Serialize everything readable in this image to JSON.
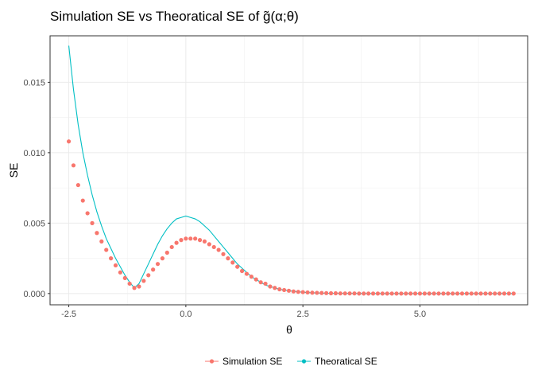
{
  "chart_data": {
    "type": "scatter",
    "title": "Simulation SE vs Theoratical SE of g̃(α;θ)",
    "xlabel": "θ",
    "ylabel": "SE",
    "xlim": [
      -2.9,
      7.3
    ],
    "ylim": [
      -0.0008,
      0.0183
    ],
    "x_ticks": [
      -2.5,
      0,
      2.5,
      5
    ],
    "x_tick_labels": [
      "-2.5",
      "0.0",
      "2.5",
      "5.0"
    ],
    "y_ticks": [
      0,
      0.005,
      0.01,
      0.015
    ],
    "y_tick_labels": [
      "0.000",
      "0.005",
      "0.010",
      "0.015"
    ],
    "grid": true,
    "legend_position": "bottom",
    "series": [
      {
        "name": "Simulation SE",
        "type": "points",
        "color": "#F8766D",
        "x": [
          -2.5,
          -2.4,
          -2.3,
          -2.2,
          -2.1,
          -2.0,
          -1.9,
          -1.8,
          -1.7,
          -1.6,
          -1.5,
          -1.4,
          -1.3,
          -1.2,
          -1.1,
          -1.0,
          -0.9,
          -0.8,
          -0.7,
          -0.6,
          -0.5,
          -0.4,
          -0.3,
          -0.2,
          -0.1,
          0.0,
          0.1,
          0.2,
          0.3,
          0.4,
          0.5,
          0.6,
          0.7,
          0.8,
          0.9,
          1.0,
          1.1,
          1.2,
          1.3,
          1.4,
          1.5,
          1.6,
          1.7,
          1.8,
          1.9,
          2.0,
          2.1,
          2.2,
          2.3,
          2.4,
          2.5,
          2.6,
          2.7,
          2.8,
          2.9,
          3.0,
          3.1,
          3.2,
          3.3,
          3.4,
          3.5,
          3.6,
          3.7,
          3.8,
          3.9,
          4.0,
          4.1,
          4.2,
          4.3,
          4.4,
          4.5,
          4.6,
          4.7,
          4.8,
          4.9,
          5.0,
          5.1,
          5.2,
          5.3,
          5.4,
          5.5,
          5.6,
          5.7,
          5.8,
          5.9,
          6.0,
          6.1,
          6.2,
          6.3,
          6.4,
          6.5,
          6.6,
          6.7,
          6.8,
          6.9,
          7.0
        ],
        "y": [
          0.0108,
          0.0091,
          0.0077,
          0.0066,
          0.0057,
          0.005,
          0.0043,
          0.0037,
          0.0031,
          0.0025,
          0.002,
          0.0015,
          0.0011,
          0.0007,
          0.0004,
          0.0005,
          0.0009,
          0.0013,
          0.0017,
          0.0021,
          0.0025,
          0.0029,
          0.0033,
          0.0036,
          0.0038,
          0.0039,
          0.0039,
          0.0039,
          0.0038,
          0.0037,
          0.0035,
          0.0033,
          0.0031,
          0.0028,
          0.0025,
          0.0022,
          0.0019,
          0.0016,
          0.0014,
          0.0012,
          0.001,
          0.0008,
          0.0007,
          0.0005,
          0.0004,
          0.0003,
          0.00025,
          0.0002,
          0.00015,
          0.00012,
          0.0001,
          8e-05,
          6e-05,
          5e-05,
          4e-05,
          3e-05,
          2e-05,
          2e-05,
          1e-05,
          1e-05,
          1e-05,
          1e-05,
          0.0,
          0.0,
          0.0,
          0.0,
          0.0,
          0.0,
          0.0,
          0.0,
          0.0,
          0.0,
          0.0,
          0.0,
          0.0,
          0.0,
          0.0,
          0.0,
          0.0,
          0.0,
          0.0,
          0.0,
          0.0,
          0.0,
          0.0,
          0.0,
          0.0,
          0.0,
          0.0,
          0.0,
          0.0,
          0.0,
          0.0,
          0.0,
          0.0,
          0.0
        ]
      },
      {
        "name": "Theoratical SE",
        "type": "line",
        "color": "#00BFC4",
        "x": [
          -2.5,
          -2.4,
          -2.3,
          -2.2,
          -2.1,
          -2.0,
          -1.9,
          -1.8,
          -1.7,
          -1.6,
          -1.5,
          -1.4,
          -1.3,
          -1.2,
          -1.1,
          -1.0,
          -0.9,
          -0.8,
          -0.7,
          -0.6,
          -0.5,
          -0.4,
          -0.3,
          -0.2,
          -0.1,
          0.0,
          0.1,
          0.2,
          0.3,
          0.4,
          0.5,
          0.6,
          0.7,
          0.8,
          0.9,
          1.0,
          1.1,
          1.2,
          1.3,
          1.4,
          1.5,
          1.6,
          1.7,
          1.8,
          1.9,
          2.0,
          2.2,
          2.4,
          2.6,
          2.8,
          3.0,
          3.5,
          4.0,
          5.0,
          6.0,
          7.0
        ],
        "y": [
          0.0176,
          0.0145,
          0.012,
          0.01,
          0.0084,
          0.007,
          0.0058,
          0.0048,
          0.0039,
          0.0032,
          0.0025,
          0.0019,
          0.0013,
          0.0008,
          0.0004,
          0.0007,
          0.0014,
          0.0021,
          0.0028,
          0.0035,
          0.0041,
          0.0046,
          0.005,
          0.0053,
          0.0054,
          0.0055,
          0.0054,
          0.0053,
          0.0051,
          0.0048,
          0.0045,
          0.0041,
          0.0037,
          0.0033,
          0.0029,
          0.0025,
          0.0021,
          0.0018,
          0.0015,
          0.0012,
          0.001,
          0.0008,
          0.0006,
          0.0005,
          0.0004,
          0.0003,
          0.0002,
          0.00012,
          7e-05,
          4e-05,
          2e-05,
          1e-05,
          0.0,
          0.0,
          0.0,
          0.0
        ]
      }
    ]
  }
}
